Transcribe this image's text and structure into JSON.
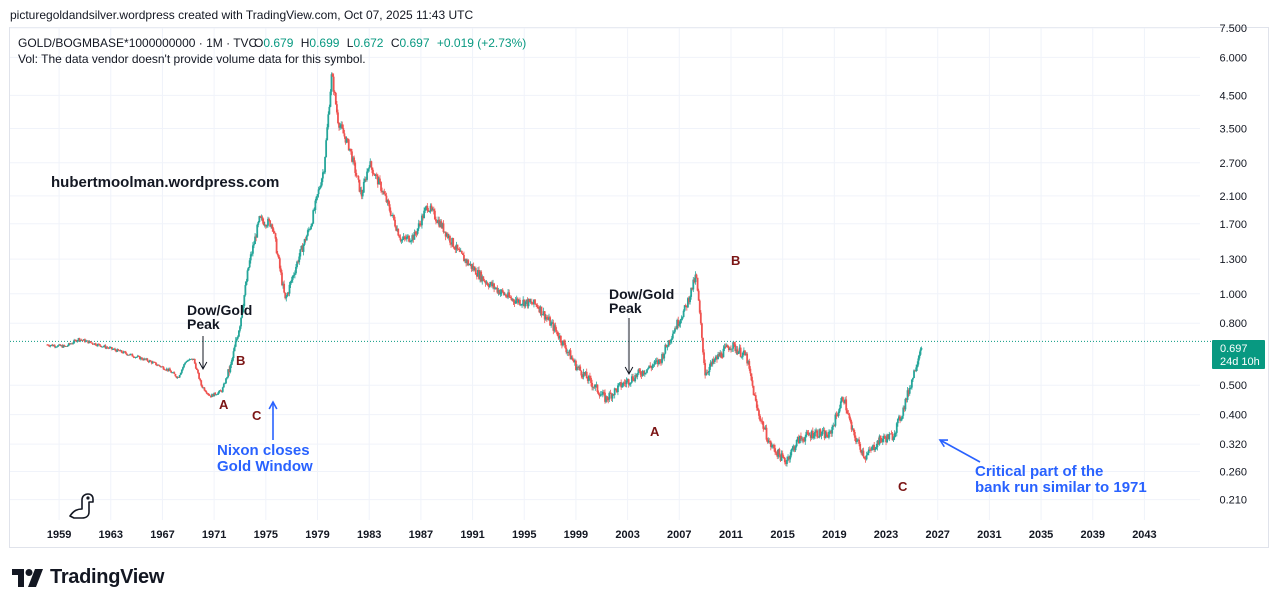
{
  "header": {
    "caption": "picturegoldandsilver.wordpress created with TradingView.com, Oct 07, 2025 11:43 UTC"
  },
  "legend": {
    "symbol": "GOLD/BOGMBASE*1000000000 · 1M · TVC",
    "open_label": "O",
    "open": "0.679",
    "high_label": "H",
    "high": "0.699",
    "low_label": "L",
    "low": "0.672",
    "close_label": "C",
    "close": "0.697",
    "change": "+0.019 (+2.73%)",
    "volume_note": "Vol: The data vendor doesn't provide volume data for this symbol."
  },
  "price_tag": {
    "value": "0.697",
    "countdown": "24d 10h"
  },
  "footer": {
    "brand": "TradingView"
  },
  "colors": {
    "up": "#26a69a",
    "down": "#ef5350",
    "accent": "#089981",
    "grid": "#f0f3fa",
    "wave_label": "#7b1414",
    "annotation_blue": "#2962ff",
    "text": "#131722"
  },
  "chart_data": {
    "type": "candlestick",
    "title": "GOLD/BOGMBASE*1000000000 · 1M · TVC",
    "scale": "log",
    "ylim": [
      0.18,
      7.5
    ],
    "xlim": [
      1955.2,
      2047.3
    ],
    "y_ticks": [
      "7.500",
      "6.000",
      "4.500",
      "3.500",
      "2.700",
      "2.100",
      "1.700",
      "1.300",
      "1.000",
      "0.800",
      "0.500",
      "0.400",
      "0.320",
      "0.260",
      "0.210"
    ],
    "x_ticks": [
      "1959",
      "1963",
      "1967",
      "1971",
      "1975",
      "1979",
      "1983",
      "1987",
      "1991",
      "1995",
      "1999",
      "2003",
      "2007",
      "2011",
      "2015",
      "2019",
      "2023",
      "2027",
      "2031",
      "2035",
      "2039",
      "2043"
    ],
    "last_value": 0.697,
    "key_points": [
      {
        "x": 1958.0,
        "y": 0.68
      },
      {
        "x": 1959.5,
        "y": 0.67
      },
      {
        "x": 1960.5,
        "y": 0.71
      },
      {
        "x": 1962.0,
        "y": 0.68
      },
      {
        "x": 1964.0,
        "y": 0.64
      },
      {
        "x": 1966.0,
        "y": 0.6
      },
      {
        "x": 1967.5,
        "y": 0.56
      },
      {
        "x": 1968.2,
        "y": 0.53
      },
      {
        "x": 1968.8,
        "y": 0.6
      },
      {
        "x": 1969.4,
        "y": 0.61
      },
      {
        "x": 1970.0,
        "y": 0.5
      },
      {
        "x": 1970.7,
        "y": 0.46
      },
      {
        "x": 1971.6,
        "y": 0.48
      },
      {
        "x": 1972.3,
        "y": 0.58
      },
      {
        "x": 1973.0,
        "y": 0.8
      },
      {
        "x": 1973.7,
        "y": 1.25
      },
      {
        "x": 1974.5,
        "y": 1.75
      },
      {
        "x": 1975.5,
        "y": 1.7
      },
      {
        "x": 1976.5,
        "y": 0.95
      },
      {
        "x": 1977.5,
        "y": 1.3
      },
      {
        "x": 1978.5,
        "y": 1.7
      },
      {
        "x": 1979.5,
        "y": 2.6
      },
      {
        "x": 1980.1,
        "y": 5.3
      },
      {
        "x": 1980.6,
        "y": 3.7
      },
      {
        "x": 1981.5,
        "y": 3.0
      },
      {
        "x": 1982.4,
        "y": 2.1
      },
      {
        "x": 1983.0,
        "y": 2.7
      },
      {
        "x": 1984.0,
        "y": 2.2
      },
      {
        "x": 1985.5,
        "y": 1.5
      },
      {
        "x": 1986.5,
        "y": 1.55
      },
      {
        "x": 1987.5,
        "y": 1.95
      },
      {
        "x": 1988.5,
        "y": 1.7
      },
      {
        "x": 1990.0,
        "y": 1.35
      },
      {
        "x": 1992.0,
        "y": 1.1
      },
      {
        "x": 1994.0,
        "y": 0.96
      },
      {
        "x": 1996.0,
        "y": 0.92
      },
      {
        "x": 1997.5,
        "y": 0.75
      },
      {
        "x": 1999.0,
        "y": 0.58
      },
      {
        "x": 2000.0,
        "y": 0.52
      },
      {
        "x": 2001.3,
        "y": 0.45
      },
      {
        "x": 2002.5,
        "y": 0.5
      },
      {
        "x": 2004.0,
        "y": 0.55
      },
      {
        "x": 2005.5,
        "y": 0.6
      },
      {
        "x": 2006.5,
        "y": 0.75
      },
      {
        "x": 2007.5,
        "y": 0.9
      },
      {
        "x": 2008.3,
        "y": 1.15
      },
      {
        "x": 2009.0,
        "y": 0.55
      },
      {
        "x": 2010.0,
        "y": 0.62
      },
      {
        "x": 2011.0,
        "y": 0.68
      },
      {
        "x": 2012.2,
        "y": 0.62
      },
      {
        "x": 2013.0,
        "y": 0.42
      },
      {
        "x": 2014.0,
        "y": 0.32
      },
      {
        "x": 2015.2,
        "y": 0.28
      },
      {
        "x": 2016.2,
        "y": 0.33
      },
      {
        "x": 2017.5,
        "y": 0.35
      },
      {
        "x": 2018.6,
        "y": 0.34
      },
      {
        "x": 2019.7,
        "y": 0.46
      },
      {
        "x": 2020.4,
        "y": 0.35
      },
      {
        "x": 2021.4,
        "y": 0.29
      },
      {
        "x": 2022.5,
        "y": 0.33
      },
      {
        "x": 2023.5,
        "y": 0.34
      },
      {
        "x": 2024.2,
        "y": 0.4
      },
      {
        "x": 2025.0,
        "y": 0.52
      },
      {
        "x": 2025.8,
        "y": 0.697
      }
    ],
    "annotations": [
      {
        "id": "site",
        "text": "hubertmoolman.wordpress.com"
      },
      {
        "id": "dowgold1",
        "lines": [
          "Dow/Gold",
          "Peak"
        ],
        "x": 1966.1,
        "y": 0.63
      },
      {
        "id": "dowgold2",
        "lines": [
          "Dow/Gold",
          "Peak"
        ],
        "x": 2000.0,
        "y": 0.61
      },
      {
        "id": "wave-a1",
        "text": "A",
        "x": 1967.5,
        "y": 0.47
      },
      {
        "id": "wave-b1",
        "text": "B",
        "x": 1969.0,
        "y": 0.63
      },
      {
        "id": "wave-c1",
        "text": "C",
        "x": 1970.5,
        "y": 0.44
      },
      {
        "id": "wave-a2",
        "text": "A",
        "x": 2001.8,
        "y": 0.39
      },
      {
        "id": "wave-b2",
        "text": "B",
        "x": 2008.3,
        "y": 1.35
      },
      {
        "id": "wave-c2",
        "text": "C",
        "x": 2021.4,
        "y": 0.25
      },
      {
        "id": "nixon",
        "lines": [
          "Nixon closes",
          "Gold Window"
        ],
        "x": 1971.6,
        "y": 0.48
      },
      {
        "id": "bankrun",
        "lines": [
          "Critical part of the",
          "bank run similar to 1971"
        ],
        "x": 2024.0,
        "y": 0.36
      }
    ]
  }
}
